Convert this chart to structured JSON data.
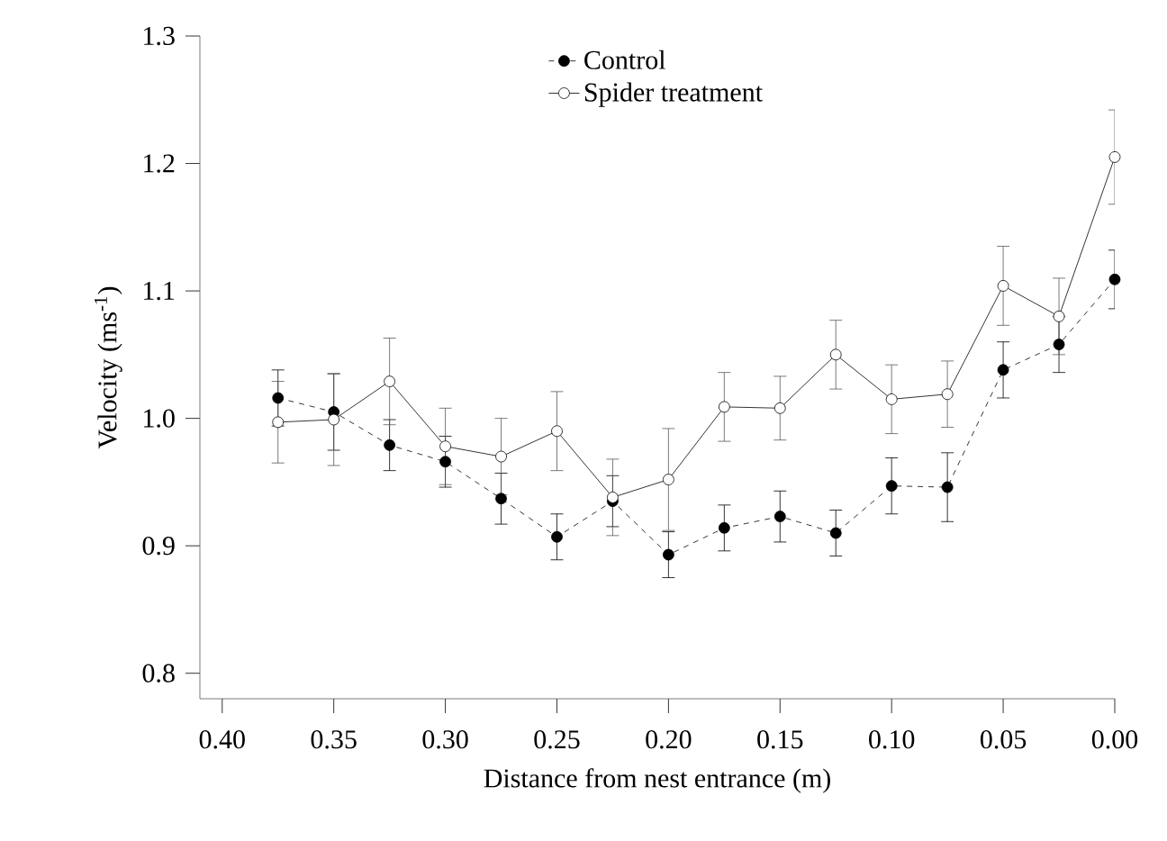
{
  "chart_data": {
    "type": "line",
    "xlabel": "Distance from nest entrance (m)",
    "ylabel": "Velocity (ms$^{-1}$)",
    "x": [
      0.375,
      0.35,
      0.325,
      0.3,
      0.275,
      0.25,
      0.225,
      0.2,
      0.175,
      0.15,
      0.125,
      0.1,
      0.075,
      0.05,
      0.025,
      0.0
    ],
    "xlim": [
      0.41,
      0.0
    ],
    "ylim": [
      0.78,
      1.3
    ],
    "xticks": [
      {
        "value": 0.4,
        "label": "0.40"
      },
      {
        "value": 0.35,
        "label": "0.35"
      },
      {
        "value": 0.3,
        "label": "0.30"
      },
      {
        "value": 0.25,
        "label": "0.25"
      },
      {
        "value": 0.2,
        "label": "0.20"
      },
      {
        "value": 0.15,
        "label": "0.15"
      },
      {
        "value": 0.1,
        "label": "0.10"
      },
      {
        "value": 0.05,
        "label": "0.05"
      },
      {
        "value": 0.0,
        "label": "0.00"
      }
    ],
    "yticks": [
      {
        "value": 0.8,
        "label": "0.8"
      },
      {
        "value": 0.9,
        "label": "0.9"
      },
      {
        "value": 1.0,
        "label": "1.0"
      },
      {
        "value": 1.1,
        "label": "1.1"
      },
      {
        "value": 1.2,
        "label": "1.2"
      },
      {
        "value": 1.3,
        "label": "1.3"
      }
    ],
    "marker": "circle",
    "legend": "top",
    "grid": false,
    "series": [
      {
        "name": "Control",
        "color": "#000000",
        "line_style": "dashed",
        "values": [
          1.016,
          1.005,
          0.979,
          0.966,
          0.937,
          0.907,
          0.935,
          0.893,
          0.914,
          0.923,
          0.91,
          0.947,
          0.946,
          1.038,
          1.058,
          1.109
        ],
        "errors": [
          0.022,
          0.03,
          0.02,
          0.02,
          0.02,
          0.018,
          0.02,
          0.018,
          0.018,
          0.02,
          0.018,
          0.022,
          0.027,
          0.022,
          0.022,
          0.023
        ]
      },
      {
        "name": "Spider treatment",
        "color": "#ffffff",
        "line_style": "solid",
        "values": [
          0.997,
          0.999,
          1.029,
          0.978,
          0.97,
          0.99,
          0.938,
          0.952,
          1.009,
          1.008,
          1.05,
          1.015,
          1.019,
          1.104,
          1.08,
          1.205
        ],
        "errors": [
          0.032,
          0.036,
          0.034,
          0.03,
          0.03,
          0.031,
          0.03,
          0.04,
          0.027,
          0.025,
          0.027,
          0.027,
          0.026,
          0.031,
          0.03,
          0.037
        ]
      }
    ]
  }
}
